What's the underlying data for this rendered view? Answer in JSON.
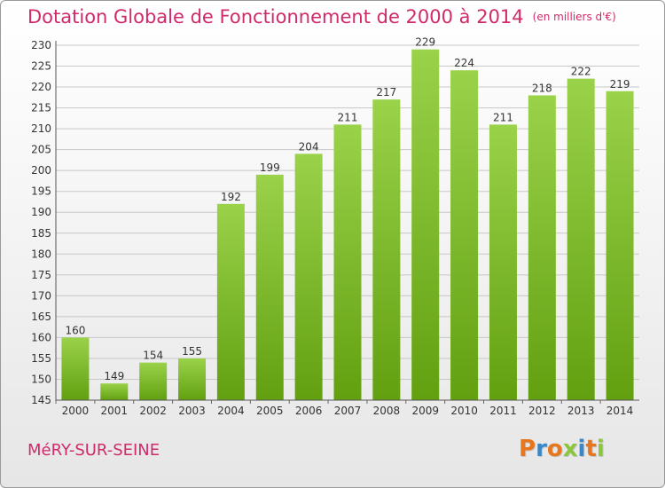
{
  "chart_data": {
    "type": "bar",
    "title": "Dotation Globale de Fonctionnement de 2000 à 2014",
    "subtitle": "(en milliers d'€)",
    "categories": [
      "2000",
      "2001",
      "2002",
      "2003",
      "2004",
      "2005",
      "2006",
      "2007",
      "2008",
      "2009",
      "2010",
      "2011",
      "2012",
      "2013",
      "2014"
    ],
    "values": [
      160,
      149,
      154,
      155,
      192,
      199,
      204,
      211,
      217,
      229,
      224,
      211,
      218,
      222,
      219
    ],
    "ylim": [
      145,
      230
    ],
    "yticks": [
      145,
      150,
      155,
      160,
      165,
      170,
      175,
      180,
      185,
      190,
      195,
      200,
      205,
      210,
      215,
      220,
      225,
      230
    ],
    "grid": true,
    "legend": "none"
  },
  "colors": {
    "title": "#d02a6a",
    "bar_light": "#9ad24a",
    "bar_dark": "#62a010",
    "grid": "#c8c8c8",
    "axis_text": "#333333"
  },
  "commune": "MéRY-SUR-SEINE",
  "logo": {
    "letters": [
      "P",
      "r",
      "o",
      "x",
      "i",
      "t",
      "i"
    ],
    "colors": [
      "#e8761e",
      "#3a87c8",
      "#e8761e",
      "#8cc63f",
      "#3a87c8",
      "#e8761e",
      "#8cc63f"
    ]
  }
}
